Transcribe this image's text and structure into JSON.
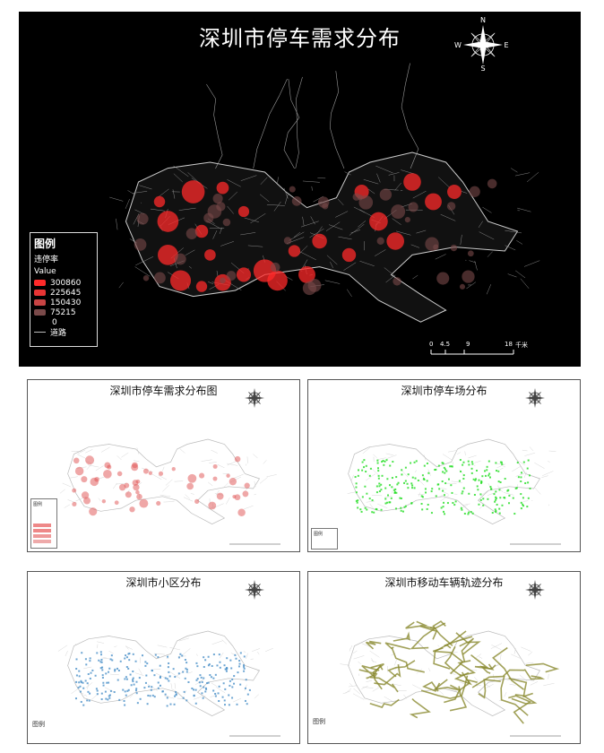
{
  "main_map": {
    "title": "深圳市停车需求分布",
    "legend": {
      "title": "图例",
      "layer": "违停率",
      "field": "Value",
      "classes": [
        {
          "label": "300860",
          "color": "#ff2a2a"
        },
        {
          "label": "225645",
          "color": "#e83434"
        },
        {
          "label": "150430",
          "color": "#c84444"
        },
        {
          "label": "75215",
          "color": "#7a4a4a"
        },
        {
          "label": "0",
          "color": "#000000"
        }
      ],
      "road_label": "道路"
    },
    "scale": {
      "ticks": [
        "0",
        "4.5",
        "9",
        "18"
      ],
      "unit": "千米"
    },
    "compass": {
      "n": "N",
      "s": "S",
      "e": "E",
      "w": "W"
    }
  },
  "panels": [
    {
      "title": "深圳市停车需求分布图",
      "color": "#e05050",
      "legend_title": "图例"
    },
    {
      "title": "深圳市停车场分布",
      "color": "#22dd22",
      "legend_title": "图例"
    },
    {
      "title": "深圳市小区分布",
      "color": "#4a90c8",
      "legend_title": "图例"
    },
    {
      "title": "深圳市移动车辆轨迹分布",
      "color": "#8a8a30",
      "legend_title": "图例"
    }
  ]
}
